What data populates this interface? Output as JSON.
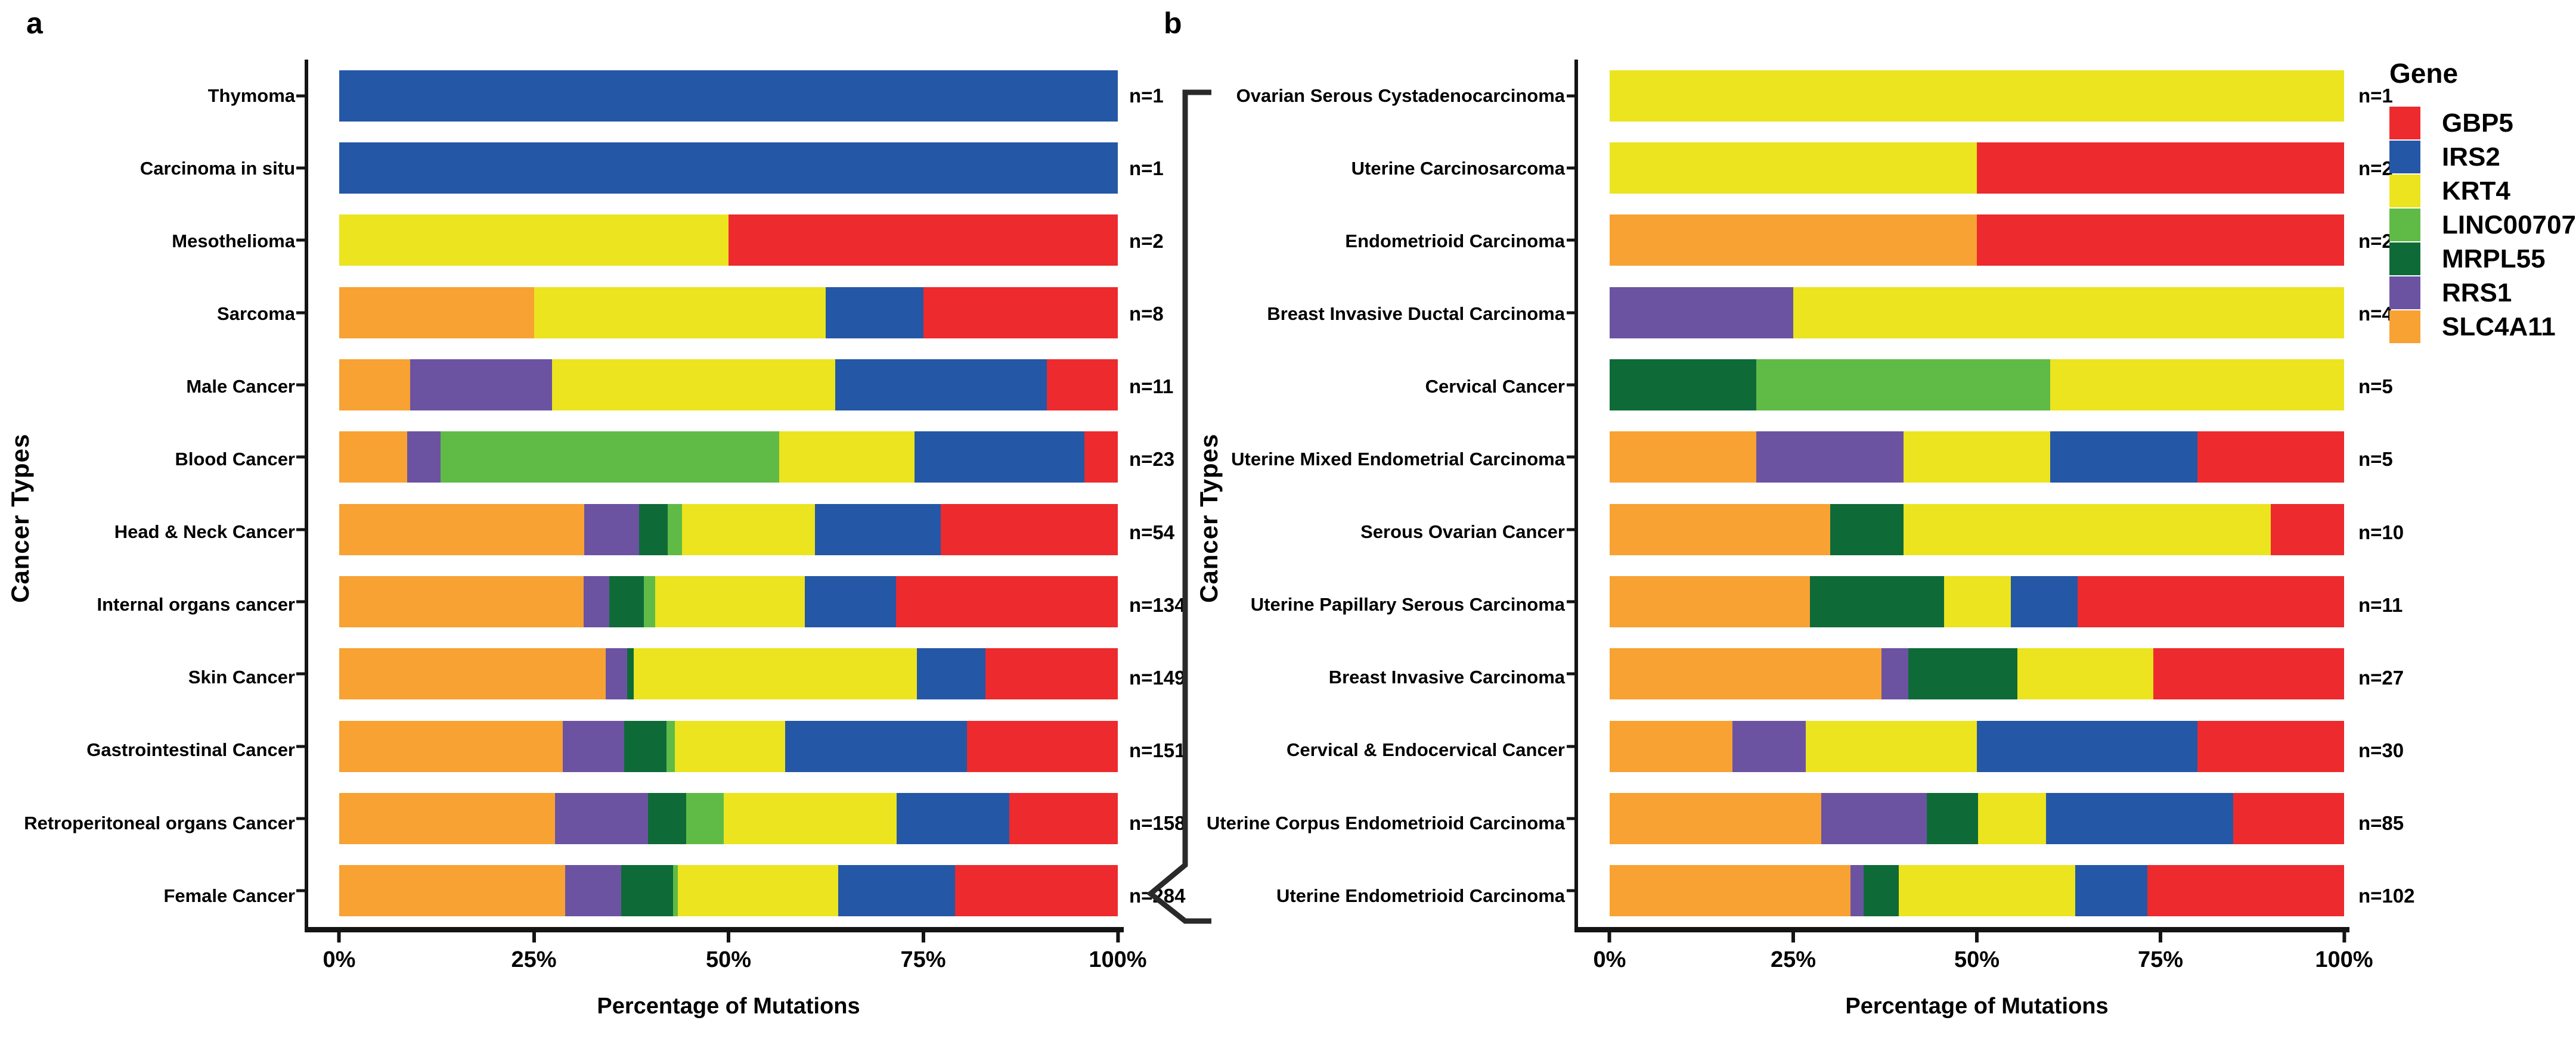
{
  "figure": {
    "panel_a_letter": "a",
    "panel_b_letter": "b",
    "xlabel": "Percentage of Mutations",
    "ylabel": "Cancer Types"
  },
  "legend": {
    "title": "Gene"
  },
  "genes": [
    {
      "name": "GBP5",
      "color": "#ED2A2E"
    },
    {
      "name": "IRS2",
      "color": "#2557A7"
    },
    {
      "name": "KRT4",
      "color": "#EBE41F"
    },
    {
      "name": "LINC00707",
      "color": "#5FBB46"
    },
    {
      "name": "MRPL55",
      "color": "#0E6B38"
    },
    {
      "name": "RRS1",
      "color": "#6B53A2"
    },
    {
      "name": "SLC4A11",
      "color": "#F7A233"
    }
  ],
  "chart_data": [
    {
      "type": "bar",
      "stacked": true,
      "orientation": "horizontal",
      "panel": "a",
      "xlabel": "Percentage of Mutations",
      "ylabel": "Cancer Types",
      "xlim": [
        0,
        100
      ],
      "x_ticks": [
        "0%",
        "25%",
        "50%",
        "75%",
        "100%"
      ],
      "grid": false,
      "rows": [
        {
          "label": "Thymoma",
          "n": "n=1",
          "segments": [
            {
              "gene": "IRS2",
              "pct": 100
            }
          ]
        },
        {
          "label": "Carcinoma in situ",
          "n": "n=1",
          "segments": [
            {
              "gene": "IRS2",
              "pct": 100
            }
          ]
        },
        {
          "label": "Mesothelioma",
          "n": "n=2",
          "segments": [
            {
              "gene": "KRT4",
              "pct": 50
            },
            {
              "gene": "GBP5",
              "pct": 50
            }
          ]
        },
        {
          "label": "Sarcoma",
          "n": "n=8",
          "segments": [
            {
              "gene": "SLC4A11",
              "pct": 25
            },
            {
              "gene": "KRT4",
              "pct": 37.5
            },
            {
              "gene": "IRS2",
              "pct": 12.5
            },
            {
              "gene": "GBP5",
              "pct": 25
            }
          ]
        },
        {
          "label": "Male Cancer",
          "n": "n=11",
          "segments": [
            {
              "gene": "SLC4A11",
              "pct": 9.1
            },
            {
              "gene": "RRS1",
              "pct": 18.2
            },
            {
              "gene": "KRT4",
              "pct": 36.4
            },
            {
              "gene": "IRS2",
              "pct": 27.2
            },
            {
              "gene": "GBP5",
              "pct": 9.1
            }
          ]
        },
        {
          "label": "Blood Cancer",
          "n": "n=23",
          "segments": [
            {
              "gene": "SLC4A11",
              "pct": 8.7
            },
            {
              "gene": "RRS1",
              "pct": 4.3
            },
            {
              "gene": "LINC00707",
              "pct": 43.5
            },
            {
              "gene": "KRT4",
              "pct": 17.4
            },
            {
              "gene": "IRS2",
              "pct": 21.8
            },
            {
              "gene": "GBP5",
              "pct": 4.3
            }
          ]
        },
        {
          "label": "Head & Neck Cancer",
          "n": "n=54",
          "segments": [
            {
              "gene": "SLC4A11",
              "pct": 31.5
            },
            {
              "gene": "RRS1",
              "pct": 7
            },
            {
              "gene": "MRPL55",
              "pct": 3.7
            },
            {
              "gene": "LINC00707",
              "pct": 1.8
            },
            {
              "gene": "KRT4",
              "pct": 17.1
            },
            {
              "gene": "IRS2",
              "pct": 16.2
            },
            {
              "gene": "GBP5",
              "pct": 22.7
            }
          ]
        },
        {
          "label": "Internal organs cancer",
          "n": "n=134",
          "segments": [
            {
              "gene": "SLC4A11",
              "pct": 31.4
            },
            {
              "gene": "RRS1",
              "pct": 3.3
            },
            {
              "gene": "MRPL55",
              "pct": 4.4
            },
            {
              "gene": "LINC00707",
              "pct": 1.5
            },
            {
              "gene": "KRT4",
              "pct": 19.2
            },
            {
              "gene": "IRS2",
              "pct": 11.7
            },
            {
              "gene": "GBP5",
              "pct": 28.5
            }
          ]
        },
        {
          "label": "Skin Cancer",
          "n": "n=149",
          "segments": [
            {
              "gene": "SLC4A11",
              "pct": 34.2
            },
            {
              "gene": "RRS1",
              "pct": 2.8
            },
            {
              "gene": "MRPL55",
              "pct": 0.8
            },
            {
              "gene": "KRT4",
              "pct": 36.4
            },
            {
              "gene": "IRS2",
              "pct": 8.8
            },
            {
              "gene": "GBP5",
              "pct": 17
            }
          ]
        },
        {
          "label": "Gastrointestinal Cancer",
          "n": "n=151",
          "segments": [
            {
              "gene": "SLC4A11",
              "pct": 28.7
            },
            {
              "gene": "RRS1",
              "pct": 7.9
            },
            {
              "gene": "MRPL55",
              "pct": 5.4
            },
            {
              "gene": "LINC00707",
              "pct": 1.1
            },
            {
              "gene": "KRT4",
              "pct": 14.2
            },
            {
              "gene": "IRS2",
              "pct": 23.3
            },
            {
              "gene": "GBP5",
              "pct": 19.4
            }
          ]
        },
        {
          "label": "Retroperitoneal organs Cancer",
          "n": "n=158",
          "segments": [
            {
              "gene": "SLC4A11",
              "pct": 27.7
            },
            {
              "gene": "RRS1",
              "pct": 12
            },
            {
              "gene": "MRPL55",
              "pct": 4.9
            },
            {
              "gene": "LINC00707",
              "pct": 4.8
            },
            {
              "gene": "KRT4",
              "pct": 22.2
            },
            {
              "gene": "IRS2",
              "pct": 14.5
            },
            {
              "gene": "GBP5",
              "pct": 13.9
            }
          ]
        },
        {
          "label": "Female Cancer",
          "n": "n=284",
          "segments": [
            {
              "gene": "SLC4A11",
              "pct": 29
            },
            {
              "gene": "RRS1",
              "pct": 7.2
            },
            {
              "gene": "MRPL55",
              "pct": 6.7
            },
            {
              "gene": "LINC00707",
              "pct": 0.6
            },
            {
              "gene": "KRT4",
              "pct": 20.6
            },
            {
              "gene": "IRS2",
              "pct": 15
            },
            {
              "gene": "GBP5",
              "pct": 20.9
            }
          ]
        }
      ]
    },
    {
      "type": "bar",
      "stacked": true,
      "orientation": "horizontal",
      "panel": "b",
      "xlabel": "Percentage of Mutations",
      "ylabel": "Cancer Types",
      "xlim": [
        0,
        100
      ],
      "x_ticks": [
        "0%",
        "25%",
        "50%",
        "75%",
        "100%"
      ],
      "grid": false,
      "rows": [
        {
          "label": "Ovarian Serous Cystadenocarcinoma",
          "n": "n=1",
          "segments": [
            {
              "gene": "KRT4",
              "pct": 100
            }
          ]
        },
        {
          "label": "Uterine Carcinosarcoma",
          "n": "n=2",
          "segments": [
            {
              "gene": "KRT4",
              "pct": 50
            },
            {
              "gene": "GBP5",
              "pct": 50
            }
          ]
        },
        {
          "label": "Endometrioid Carcinoma",
          "n": "n=2",
          "segments": [
            {
              "gene": "SLC4A11",
              "pct": 50
            },
            {
              "gene": "GBP5",
              "pct": 50
            }
          ]
        },
        {
          "label": "Breast Invasive Ductal Carcinoma",
          "n": "n=4",
          "segments": [
            {
              "gene": "RRS1",
              "pct": 25
            },
            {
              "gene": "KRT4",
              "pct": 75
            }
          ]
        },
        {
          "label": "Cervical Cancer",
          "n": "n=5",
          "segments": [
            {
              "gene": "MRPL55",
              "pct": 20
            },
            {
              "gene": "LINC00707",
              "pct": 40
            },
            {
              "gene": "KRT4",
              "pct": 40
            }
          ]
        },
        {
          "label": "Uterine Mixed Endometrial Carcinoma",
          "n": "n=5",
          "segments": [
            {
              "gene": "SLC4A11",
              "pct": 20
            },
            {
              "gene": "RRS1",
              "pct": 20
            },
            {
              "gene": "KRT4",
              "pct": 20
            },
            {
              "gene": "IRS2",
              "pct": 20
            },
            {
              "gene": "GBP5",
              "pct": 20
            }
          ]
        },
        {
          "label": "Serous Ovarian Cancer",
          "n": "n=10",
          "segments": [
            {
              "gene": "SLC4A11",
              "pct": 30
            },
            {
              "gene": "MRPL55",
              "pct": 10
            },
            {
              "gene": "KRT4",
              "pct": 50
            },
            {
              "gene": "GBP5",
              "pct": 10
            }
          ]
        },
        {
          "label": "Uterine Papillary Serous Carcinoma",
          "n": "n=11",
          "segments": [
            {
              "gene": "SLC4A11",
              "pct": 27.3
            },
            {
              "gene": "MRPL55",
              "pct": 18.2
            },
            {
              "gene": "KRT4",
              "pct": 9.1
            },
            {
              "gene": "IRS2",
              "pct": 9.1
            },
            {
              "gene": "GBP5",
              "pct": 36.3
            }
          ]
        },
        {
          "label": "Breast Invasive Carcinoma",
          "n": "n=27",
          "segments": [
            {
              "gene": "SLC4A11",
              "pct": 37
            },
            {
              "gene": "RRS1",
              "pct": 3.7
            },
            {
              "gene": "MRPL55",
              "pct": 14.8
            },
            {
              "gene": "KRT4",
              "pct": 18.5
            },
            {
              "gene": "GBP5",
              "pct": 26
            }
          ]
        },
        {
          "label": "Cervical & Endocervical Cancer",
          "n": "n=30",
          "segments": [
            {
              "gene": "SLC4A11",
              "pct": 16.7
            },
            {
              "gene": "RRS1",
              "pct": 10
            },
            {
              "gene": "KRT4",
              "pct": 23.3
            },
            {
              "gene": "IRS2",
              "pct": 30
            },
            {
              "gene": "GBP5",
              "pct": 20
            }
          ]
        },
        {
          "label": "Uterine Corpus Endometrioid Carcinoma",
          "n": "n=85",
          "segments": [
            {
              "gene": "SLC4A11",
              "pct": 28.8
            },
            {
              "gene": "RRS1",
              "pct": 14.4
            },
            {
              "gene": "MRPL55",
              "pct": 7
            },
            {
              "gene": "KRT4",
              "pct": 9.2
            },
            {
              "gene": "IRS2",
              "pct": 25.5
            },
            {
              "gene": "GBP5",
              "pct": 15.1
            }
          ]
        },
        {
          "label": "Uterine Endometrioid Carcinoma",
          "n": "n=102",
          "segments": [
            {
              "gene": "SLC4A11",
              "pct": 32.8
            },
            {
              "gene": "RRS1",
              "pct": 1.8
            },
            {
              "gene": "MRPL55",
              "pct": 4.8
            },
            {
              "gene": "KRT4",
              "pct": 24
            },
            {
              "gene": "IRS2",
              "pct": 9.8
            },
            {
              "gene": "GBP5",
              "pct": 26.8
            }
          ]
        }
      ]
    }
  ]
}
